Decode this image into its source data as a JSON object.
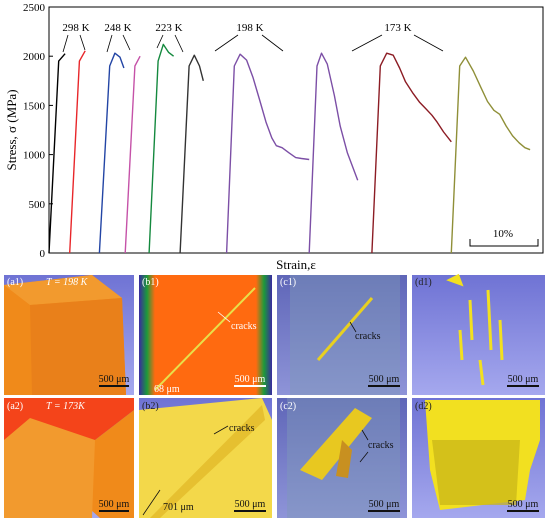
{
  "chart_data": {
    "type": "line",
    "xlabel": "Strain,ε",
    "ylabel": "Stress, σ  (MPa)",
    "ylim": [
      0,
      2500
    ],
    "yticks": [
      0,
      500,
      1000,
      1500,
      2000,
      2500
    ],
    "scale_bar_label": "10%",
    "grid": false,
    "temperature_labels": [
      "298 K",
      "248 K",
      "223 K",
      "198 K",
      "173 K"
    ],
    "series": [
      {
        "color": "#000000",
        "x": [
          0.0,
          1.5,
          2.5
        ],
        "y": [
          0,
          1950,
          2025
        ]
      },
      {
        "color": "#e8262a",
        "x": [
          3.2,
          4.7,
          5.6
        ],
        "y": [
          0,
          1950,
          2055
        ]
      },
      {
        "color": "#2345a5",
        "x": [
          7.8,
          9.4,
          10.2,
          11.0,
          11.6
        ],
        "y": [
          0,
          1900,
          2030,
          1990,
          1880
        ]
      },
      {
        "color": "#c552a8",
        "x": [
          11.8,
          13.3,
          14.1
        ],
        "y": [
          0,
          1900,
          2000
        ]
      },
      {
        "color": "#14893e",
        "x": [
          15.5,
          16.9,
          17.7,
          18.5,
          19.3
        ],
        "y": [
          0,
          1950,
          2120,
          2040,
          2000
        ]
      },
      {
        "color": "#333333",
        "x": [
          20.3,
          21.7,
          22.5,
          23.3,
          23.9
        ],
        "y": [
          0,
          1900,
          2010,
          1900,
          1750
        ]
      },
      {
        "color": "#7c4fa6",
        "x": [
          27.5,
          28.7,
          29.6,
          30.6,
          31.6,
          32.6,
          33.6,
          34.5,
          35.2,
          36.1,
          37.1,
          38.2,
          39.1,
          40.3
        ],
        "y": [
          0,
          1900,
          2020,
          1960,
          1780,
          1560,
          1330,
          1170,
          1090,
          1070,
          1020,
          970,
          960,
          950
        ]
      },
      {
        "color": "#7c4fa6",
        "x": [
          40.3,
          41.5,
          42.2,
          43.1,
          44.2,
          45.1,
          46.2,
          47.8
        ],
        "y": [
          0,
          1900,
          2030,
          1920,
          1600,
          1290,
          1020,
          740
        ]
      },
      {
        "color": "#8c1c24",
        "x": [
          50.0,
          51.3,
          52.3,
          53.3,
          54.3,
          55.2,
          56.4,
          57.4,
          58.3,
          59.3,
          60.1,
          61.1,
          62.3
        ],
        "y": [
          0,
          1900,
          2030,
          2010,
          1880,
          1740,
          1620,
          1530,
          1470,
          1400,
          1330,
          1230,
          1130
        ]
      },
      {
        "color": "#8f8f38",
        "x": [
          62.3,
          63.6,
          64.5,
          65.7,
          66.9,
          67.9,
          68.9,
          69.8,
          70.8,
          71.8,
          72.8,
          73.7,
          74.5
        ],
        "y": [
          0,
          1900,
          1990,
          1850,
          1680,
          1540,
          1450,
          1410,
          1290,
          1190,
          1120,
          1070,
          1050
        ]
      }
    ]
  },
  "panels": [
    {
      "tag": "(a1)",
      "note": "T = 198 K",
      "scale_text": "500 μm"
    },
    {
      "tag": "(b1)",
      "note": "cracks",
      "dimension": "68 μm",
      "scale_text": "500 μm"
    },
    {
      "tag": "(c1)",
      "note": "cracks",
      "scale_text": "500 μm"
    },
    {
      "tag": "(d1)",
      "scale_text": "500 μm"
    },
    {
      "tag": "(a2)",
      "note": "T = 173K",
      "scale_text": "500 μm"
    },
    {
      "tag": "(b2)",
      "note": "cracks",
      "dimension": "701 μm",
      "scale_text": "500 μm"
    },
    {
      "tag": "(c2)",
      "note": "cracks",
      "scale_text": "500 μm"
    },
    {
      "tag": "(d2)",
      "scale_text": "500 μm"
    }
  ]
}
